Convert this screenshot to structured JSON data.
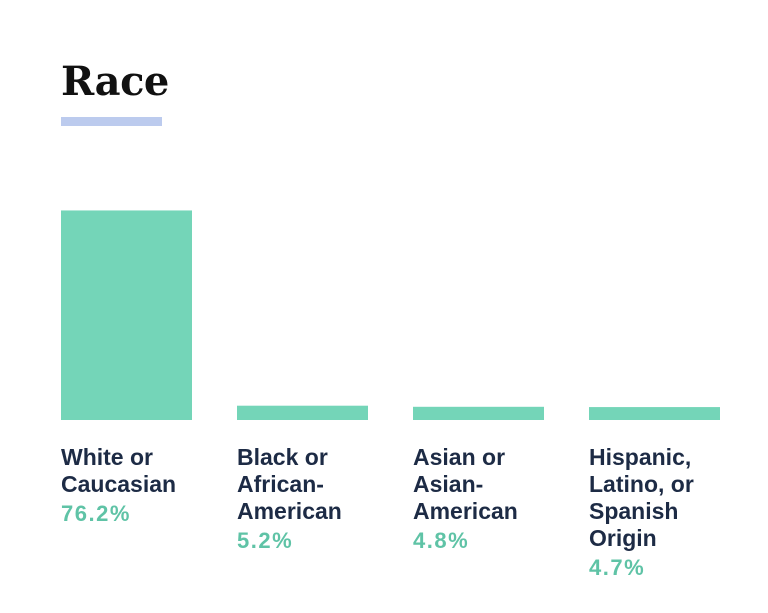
{
  "colors": {
    "bar": "#74d5b8",
    "accent_line": "#bccbee",
    "label_text": "#1d2b45",
    "value_text": "#5fc3a6"
  },
  "chart_data": {
    "type": "bar",
    "title": "Race",
    "categories": [
      "White or\nCaucasian",
      "Black or\nAfrican-\nAmerican",
      "Asian or\nAsian-\nAmerican",
      "Hispanic,\nLatino, or\nSpanish\nOrigin"
    ],
    "values": [
      76.2,
      5.2,
      4.8,
      4.7
    ],
    "value_labels": [
      "76.2%",
      "5.2%",
      "4.8%",
      "4.7%"
    ],
    "xlabel": "",
    "ylabel": "",
    "ylim": [
      0,
      100
    ],
    "grid": false
  }
}
